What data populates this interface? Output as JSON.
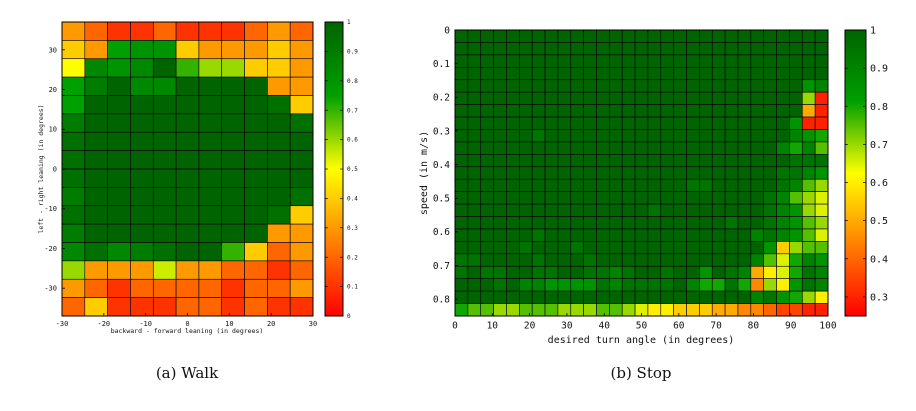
{
  "captions": [
    "(a) Walk",
    "(b) Stop"
  ],
  "colorscale": [
    "#ff0000",
    "#ff8000",
    "#ffff00",
    "#00a000",
    "#006400"
  ],
  "chart_data": [
    {
      "type": "heatmap",
      "title": "",
      "xlabel": "backward - forward leaning (in degrees)",
      "ylabel": "left - right leaning (in degrees)",
      "xlim": [
        -30,
        30
      ],
      "ylim": [
        -37,
        37
      ],
      "xticks": [
        -30,
        -20,
        -10,
        0,
        10,
        20,
        30
      ],
      "yticks": [
        30,
        20,
        10,
        0,
        -10,
        -20,
        -30
      ],
      "colorbar": {
        "min": 0,
        "max": 1,
        "ticks": [
          1,
          0.9,
          0.8,
          0.7,
          0.6,
          0.5,
          0.4,
          0.3,
          0.2,
          0.1,
          0
        ]
      },
      "values": [
        [
          0.3,
          0.2,
          0.1,
          0.1,
          0.2,
          0.1,
          0.1,
          0.1,
          0.2,
          0.3,
          0.2
        ],
        [
          0.4,
          0.3,
          0.75,
          0.8,
          0.8,
          0.4,
          0.3,
          0.3,
          0.3,
          0.4,
          0.3
        ],
        [
          0.5,
          0.85,
          0.8,
          0.85,
          1.0,
          0.7,
          0.6,
          0.6,
          0.4,
          0.4,
          0.3
        ],
        [
          0.75,
          0.9,
          1.0,
          0.85,
          0.85,
          1.0,
          1.0,
          1.0,
          1.0,
          0.3,
          0.3
        ],
        [
          0.75,
          1.0,
          1.0,
          1.0,
          1.0,
          1.0,
          1.0,
          1.0,
          1.0,
          0.95,
          0.4
        ],
        [
          0.9,
          1.0,
          1.0,
          1.0,
          1.0,
          1.0,
          1.0,
          1.0,
          1.0,
          1.0,
          0.95
        ],
        [
          0.95,
          1.0,
          1.0,
          1.0,
          1.0,
          1.0,
          1.0,
          1.0,
          1.0,
          1.0,
          1.0
        ],
        [
          0.95,
          1.0,
          1.0,
          1.0,
          1.0,
          1.0,
          1.0,
          1.0,
          1.0,
          1.0,
          1.0
        ],
        [
          0.95,
          1.0,
          1.0,
          1.0,
          1.0,
          1.0,
          1.0,
          1.0,
          1.0,
          1.0,
          1.0
        ],
        [
          0.9,
          1.0,
          1.0,
          1.0,
          1.0,
          1.0,
          1.0,
          1.0,
          1.0,
          1.0,
          0.95
        ],
        [
          0.95,
          1.0,
          1.0,
          1.0,
          1.0,
          1.0,
          1.0,
          1.0,
          1.0,
          0.95,
          0.4
        ],
        [
          0.9,
          1.0,
          1.0,
          1.0,
          1.0,
          1.0,
          1.0,
          1.0,
          1.0,
          0.3,
          0.3
        ],
        [
          0.85,
          0.95,
          0.85,
          0.9,
          0.95,
          1.0,
          1.0,
          0.7,
          0.4,
          0.2,
          0.3
        ],
        [
          0.6,
          0.3,
          0.3,
          0.3,
          0.55,
          0.3,
          0.3,
          0.2,
          0.2,
          0.1,
          0.2
        ],
        [
          0.3,
          0.2,
          0.1,
          0.2,
          0.2,
          0.2,
          0.2,
          0.1,
          0.2,
          0.2,
          0.3
        ],
        [
          0.2,
          0.4,
          0.1,
          0.1,
          0.1,
          0.2,
          0.2,
          0.1,
          0.2,
          0.1,
          0.1
        ]
      ]
    },
    {
      "type": "heatmap",
      "title": "",
      "xlabel": "desired turn angle (in degrees)",
      "ylabel": "speed (in m/s)",
      "xlim": [
        0,
        100
      ],
      "ylim": [
        0,
        0.85
      ],
      "xticks": [
        0,
        10,
        20,
        30,
        40,
        50,
        60,
        70,
        80,
        90,
        100
      ],
      "yticks": [
        0,
        0.1,
        0.2,
        0.3,
        0.4,
        0.5,
        0.6,
        0.7,
        0.8
      ],
      "yticklabels": [
        "0",
        "0.1",
        "0.2",
        "0.3",
        "0.4",
        "0.5",
        "0.6",
        "0.7",
        "0.8"
      ],
      "colorbar": {
        "min": 0.25,
        "max": 1,
        "ticks": [
          1,
          0.9,
          0.8,
          0.7,
          0.6,
          0.5,
          0.4,
          0.3
        ]
      },
      "values": [
        [
          1,
          1,
          1,
          1,
          1,
          1,
          1,
          1,
          1,
          1,
          1,
          1,
          1,
          1,
          1,
          1,
          1,
          1,
          1,
          1,
          1,
          1,
          1,
          1,
          1,
          1,
          1,
          1,
          1
        ],
        [
          1,
          1,
          1,
          1,
          1,
          1,
          1,
          1,
          1,
          1,
          1,
          1,
          1,
          1,
          1,
          1,
          1,
          1,
          1,
          1,
          1,
          1,
          1,
          1,
          1,
          1,
          1,
          1,
          1
        ],
        [
          1,
          1,
          1,
          1,
          1,
          1,
          1,
          1,
          1,
          1,
          1,
          1,
          1,
          1,
          1,
          1,
          1,
          1,
          1,
          1,
          1,
          1,
          1,
          1,
          1,
          1,
          1,
          1,
          1
        ],
        [
          1,
          1,
          1,
          1,
          1,
          1,
          1,
          1,
          1,
          1,
          1,
          1,
          1,
          1,
          1,
          1,
          1,
          1,
          1,
          1,
          1,
          1,
          1,
          1,
          1,
          1,
          1,
          1,
          1
        ],
        [
          1,
          1,
          1,
          1,
          1,
          1,
          1,
          1,
          1,
          1,
          1,
          1,
          1,
          1,
          1,
          1,
          1,
          1,
          1,
          1,
          1,
          1,
          1,
          1,
          1,
          1,
          1,
          0.85,
          0.9
        ],
        [
          1,
          1,
          1,
          1,
          1,
          1,
          1,
          1,
          1,
          1,
          1,
          1,
          1,
          1,
          1,
          1,
          1,
          1,
          1,
          1,
          1,
          1,
          1,
          1,
          1,
          1,
          1,
          0.7,
          0.3
        ],
        [
          1,
          1,
          1,
          1,
          1,
          1,
          1,
          1,
          1,
          1,
          1,
          1,
          1,
          1,
          1,
          1,
          1,
          1,
          1,
          1,
          1,
          1,
          1,
          1,
          1,
          1,
          1,
          0.5,
          0.3
        ],
        [
          1,
          1,
          1,
          1,
          1,
          1,
          1,
          1,
          1,
          1,
          1,
          1,
          1,
          1,
          1,
          1,
          1,
          1,
          1,
          1,
          1,
          1,
          1,
          1,
          1,
          1,
          0.85,
          0.3,
          0.3
        ],
        [
          1,
          1,
          1,
          1,
          1,
          1,
          0.95,
          1,
          1,
          1,
          1,
          1,
          1,
          1,
          1,
          1,
          1,
          1,
          1,
          1,
          1,
          1,
          1,
          1,
          1,
          1,
          0.9,
          0.85,
          0.8
        ],
        [
          1,
          1,
          1,
          1,
          1,
          1,
          1,
          1,
          1,
          1,
          1,
          1,
          1,
          1,
          1,
          1,
          1,
          1,
          1,
          1,
          1,
          1,
          1,
          1,
          1,
          0.9,
          0.8,
          0.9,
          0.75
        ],
        [
          1,
          1,
          1,
          1,
          1,
          1,
          1,
          1,
          1,
          1,
          1,
          1,
          1,
          1,
          1,
          1,
          1,
          1,
          1,
          1,
          1,
          1,
          1,
          1,
          1,
          1,
          0.95,
          0.95,
          0.95
        ],
        [
          1,
          1,
          1,
          1,
          1,
          1,
          1,
          1,
          1,
          1,
          1,
          1,
          1,
          1,
          1,
          1,
          1,
          1,
          1,
          1,
          1,
          1,
          1,
          1,
          1,
          0.95,
          0.95,
          0.9,
          0.85
        ],
        [
          1,
          1,
          1,
          1,
          1,
          1,
          1,
          1,
          1,
          1,
          1,
          1,
          1,
          1,
          1,
          1,
          1,
          1,
          0.95,
          0.95,
          1,
          1,
          1,
          1,
          1,
          0.95,
          0.9,
          0.75,
          0.7
        ],
        [
          1,
          1,
          1,
          1,
          1,
          1,
          1,
          1,
          1,
          1,
          1,
          1,
          1,
          1,
          1,
          1,
          1,
          1,
          1,
          1,
          1,
          1,
          1,
          1,
          0.95,
          0.9,
          0.75,
          0.7,
          0.65
        ],
        [
          1,
          1,
          1,
          1,
          1,
          1,
          1,
          1,
          1,
          1,
          1,
          1,
          1,
          1,
          1,
          0.95,
          1,
          1,
          1,
          1,
          1,
          1,
          1,
          1,
          0.95,
          0.9,
          0.85,
          0.7,
          0.65
        ],
        [
          1,
          1,
          1,
          1,
          1,
          1,
          1,
          1,
          1,
          1,
          1,
          1,
          1,
          1,
          1,
          1,
          1,
          1,
          1,
          1,
          1,
          0.95,
          1,
          1,
          0.95,
          0.9,
          0.85,
          0.75,
          0.7
        ],
        [
          1,
          1,
          1,
          1,
          1,
          1,
          0.95,
          1,
          1,
          1,
          1,
          1,
          1,
          1,
          1,
          1,
          1,
          1,
          1,
          1,
          1,
          1,
          1,
          0.9,
          0.95,
          0.9,
          0.85,
          0.75,
          0.65
        ],
        [
          1,
          1,
          1,
          1,
          1,
          0.95,
          1,
          1,
          1,
          0.95,
          1,
          1,
          1,
          1,
          1,
          1,
          1,
          1,
          1,
          1,
          1,
          1,
          1,
          1,
          0.85,
          0.55,
          0.7,
          0.75,
          0.75
        ],
        [
          0.95,
          0.95,
          1,
          1,
          1,
          1,
          0.95,
          1,
          1,
          1,
          0.95,
          1,
          1,
          1,
          1,
          1,
          1,
          1,
          1,
          1,
          1,
          1,
          1,
          0.9,
          0.75,
          0.65,
          0.8,
          0.9,
          0.85
        ],
        [
          0.95,
          1,
          0.95,
          0.95,
          1,
          1,
          0.95,
          0.95,
          1,
          1,
          0.95,
          0.95,
          0.9,
          0.95,
          1,
          1,
          0.95,
          1,
          1,
          0.85,
          1,
          0.95,
          0.9,
          0.5,
          0.6,
          0.65,
          0.8,
          0.95,
          0.9
        ],
        [
          1,
          1,
          1,
          0.95,
          1,
          0.9,
          0.9,
          0.85,
          0.85,
          0.85,
          0.85,
          0.95,
          0.9,
          0.95,
          0.95,
          0.95,
          0.95,
          1,
          0.9,
          0.8,
          0.8,
          0.95,
          0.8,
          0.45,
          0.7,
          0.6,
          0.85,
          0.95,
          0.9
        ],
        [
          1,
          1,
          1,
          1,
          1,
          1,
          1,
          1,
          1,
          1,
          1,
          1,
          1,
          1,
          1,
          1,
          1,
          1,
          1,
          1,
          1,
          1,
          1,
          0.9,
          0.95,
          0.85,
          0.8,
          0.7,
          0.6
        ],
        [
          0.8,
          0.75,
          0.75,
          0.7,
          0.7,
          0.75,
          0.75,
          0.75,
          0.7,
          0.7,
          0.7,
          0.75,
          0.75,
          0.7,
          0.65,
          0.6,
          0.6,
          0.55,
          0.55,
          0.55,
          0.5,
          0.5,
          0.45,
          0.45,
          0.4,
          0.35,
          0.35,
          0.3,
          0.3
        ]
      ]
    }
  ]
}
